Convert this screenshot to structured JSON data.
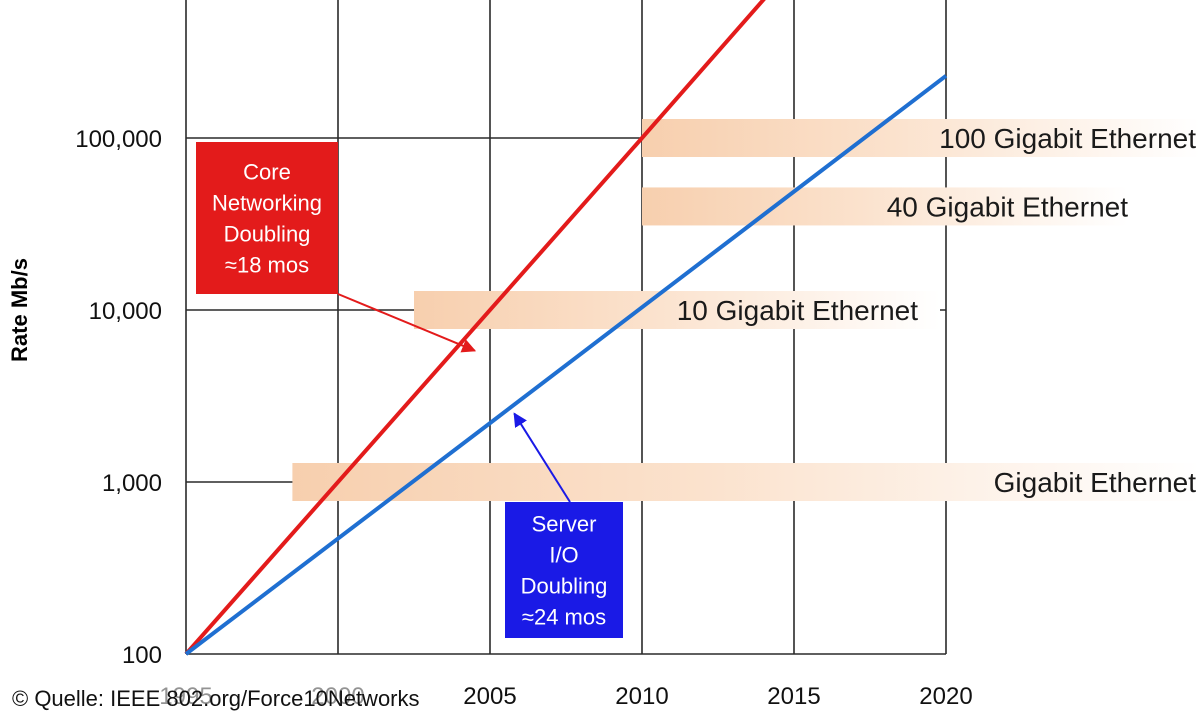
{
  "chart_data": {
    "type": "line",
    "ylabel": "Rate Mb/s",
    "yscale": "log",
    "xlim": [
      1995,
      2020
    ],
    "ylim": [
      100,
      1000000
    ],
    "x_ticks": [
      "1995",
      "2000",
      "2005",
      "2010",
      "2015",
      "2020"
    ],
    "y_ticks": [
      "100",
      "1,000",
      "10,000",
      "100,000"
    ],
    "y_tick_values": [
      100,
      1000,
      10000,
      100000
    ],
    "grid": true,
    "series": [
      {
        "name": "Core Networking Doubling ≈18 mos",
        "color": "#e31b1b",
        "points": [
          [
            1995,
            100
          ],
          [
            2010,
            100000
          ],
          [
            2014.2,
            700000
          ]
        ]
      },
      {
        "name": "Server I/O Doubling ≈24 mos",
        "color": "#1f6fd1",
        "points": [
          [
            1995,
            100
          ],
          [
            2005,
            2200
          ],
          [
            2020,
            230000
          ]
        ]
      }
    ],
    "annotations": [
      {
        "id": "core",
        "lines": [
          "Core",
          "Networking",
          "Doubling",
          "≈18 mos"
        ],
        "color": "#e31b1b",
        "arrow_to": [
          2004.5,
          5800
        ]
      },
      {
        "id": "server",
        "lines": [
          "Server",
          "I/O",
          "Doubling",
          "≈24 mos"
        ],
        "color": "#1a1ae6",
        "arrow_to": [
          2005.8,
          2500
        ]
      }
    ],
    "bands": [
      {
        "label": "Gigabit Ethernet",
        "start_year": 1998.5,
        "rate": 1000
      },
      {
        "label": "10 Gigabit Ethernet",
        "start_year": 2002.5,
        "rate": 10000
      },
      {
        "label": "40 Gigabit Ethernet",
        "start_year": 2010,
        "rate": 40000
      },
      {
        "label": "100 Gigabit Ethernet",
        "start_year": 2010,
        "rate": 100000
      }
    ]
  },
  "source": "© Quelle: IEEE 802.org/Force10Networks"
}
